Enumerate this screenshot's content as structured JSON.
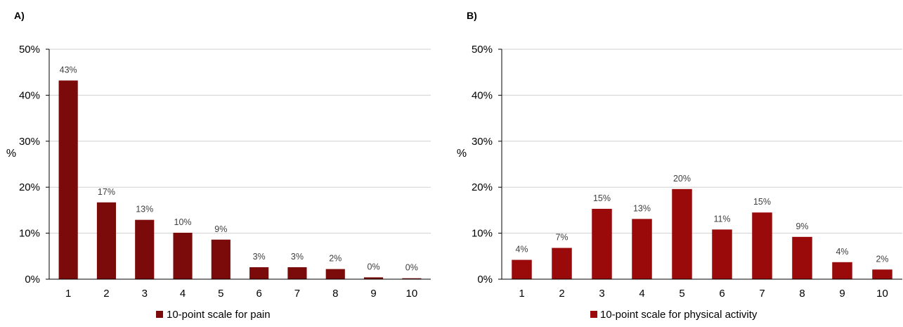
{
  "chart_data": [
    {
      "panel": "A)",
      "type": "bar",
      "categories": [
        "1",
        "2",
        "3",
        "4",
        "5",
        "6",
        "7",
        "8",
        "9",
        "10"
      ],
      "values": [
        43.2,
        16.7,
        12.9,
        10.1,
        8.6,
        2.6,
        2.6,
        2.2,
        0.4,
        0.2
      ],
      "data_labels": [
        "43%",
        "17%",
        "13%",
        "10%",
        "9%",
        "3%",
        "3%",
        "2%",
        "0%",
        "0%"
      ],
      "series": [
        {
          "name": "10-point scale for pain",
          "color": "#7b0a0a"
        }
      ],
      "ylabel": "%",
      "ylim": [
        0,
        50
      ],
      "y_ticks": [
        "0%",
        "10%",
        "20%",
        "30%",
        "40%",
        "50%"
      ],
      "grid": true,
      "legend": "bottom-center"
    },
    {
      "panel": "B)",
      "type": "bar",
      "categories": [
        "1",
        "2",
        "3",
        "4",
        "5",
        "6",
        "7",
        "8",
        "9",
        "10"
      ],
      "values": [
        4.2,
        6.8,
        15.3,
        13.1,
        19.6,
        10.8,
        14.5,
        9.2,
        3.7,
        2.1
      ],
      "data_labels": [
        "4%",
        "7%",
        "15%",
        "13%",
        "20%",
        "11%",
        "15%",
        "9%",
        "4%",
        "2%"
      ],
      "series": [
        {
          "name": "10-point scale for physical activity",
          "color": "#9a0a0a"
        }
      ],
      "ylabel": "%",
      "ylim": [
        0,
        50
      ],
      "y_ticks": [
        "0%",
        "10%",
        "20%",
        "30%",
        "40%",
        "50%"
      ],
      "grid": true,
      "legend": "bottom-center"
    }
  ]
}
